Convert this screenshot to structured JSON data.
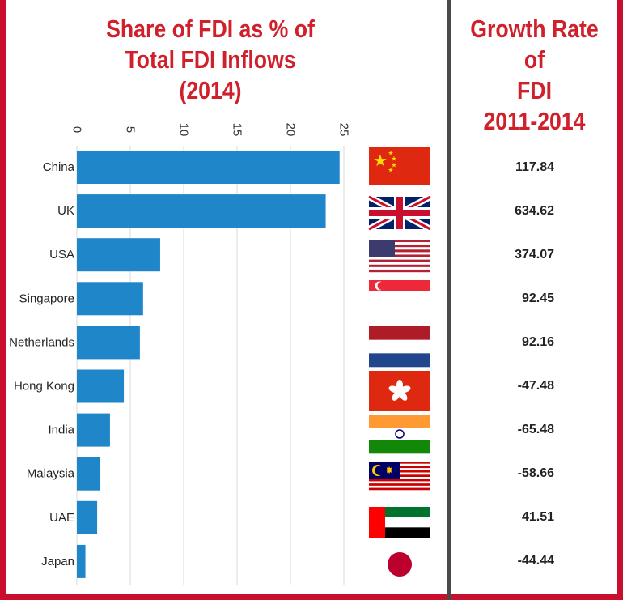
{
  "title_left": [
    "Share of FDI as % of",
    "Total FDI Inflows",
    "(2014)"
  ],
  "title_right": [
    "Growth Rate of",
    "FDI",
    "2011-2014"
  ],
  "colors": {
    "bar": "#1f86c9",
    "frame": "#c8102e",
    "title": "#d0202c",
    "divider": "#4a4a4a"
  },
  "chart_data": {
    "type": "bar",
    "orientation": "horizontal",
    "categories": [
      "China",
      "UK",
      "USA",
      "Singapore",
      "Netherlands",
      "Hong Kong",
      "India",
      "Malaysia",
      "UAE",
      "Japan"
    ],
    "values": [
      24.6,
      23.3,
      7.8,
      6.2,
      5.9,
      4.4,
      3.1,
      2.2,
      1.9,
      0.8
    ],
    "xticks": [
      0,
      5,
      10,
      15,
      20,
      25
    ],
    "xlim": [
      0,
      25
    ],
    "grid": true,
    "title": "Share of FDI as % of Total FDI Inflows (2014)",
    "xlabel": "",
    "ylabel": ""
  },
  "flags": [
    "china-flag",
    "uk-flag",
    "usa-flag",
    "singapore-flag",
    "netherlands-flag",
    "hong-kong-flag",
    "india-flag",
    "malaysia-flag",
    "uae-flag",
    "japan-flag"
  ],
  "growth_rates": [
    "117.84",
    "634.62",
    "374.07",
    "92.45",
    "92.16",
    "-47.48",
    "-65.48",
    "-58.66",
    "41.51",
    "-44.44"
  ]
}
